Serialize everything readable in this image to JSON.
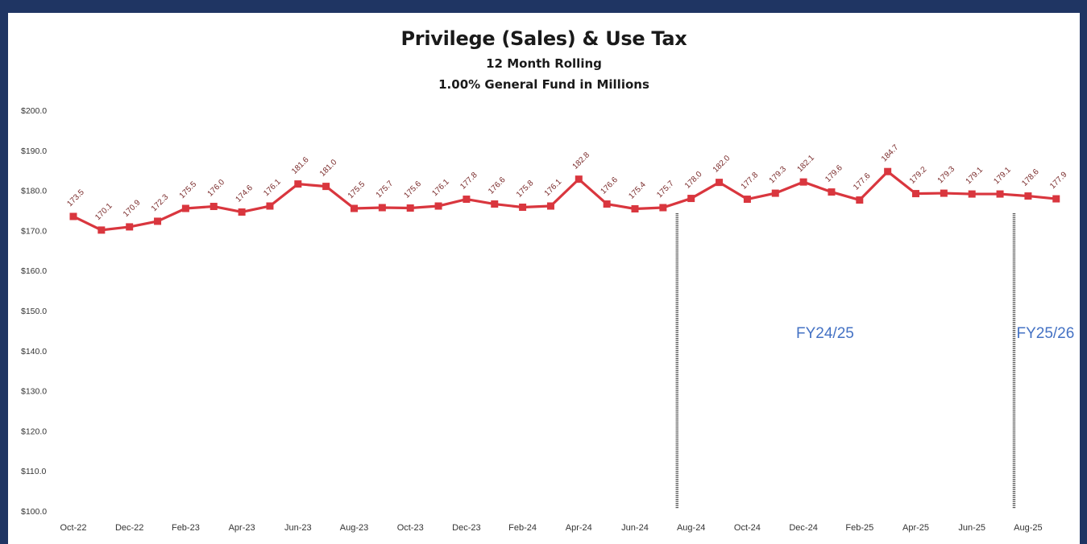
{
  "chart_data": {
    "type": "line",
    "title": "Privilege (Sales) & Use Tax",
    "subtitle": [
      "12 Month Rolling",
      "1.00% General Fund in Millions"
    ],
    "ylim": [
      100,
      200
    ],
    "y_ticks": [
      "$200.0",
      "$190.0",
      "$180.0",
      "$170.0",
      "$160.0",
      "$150.0",
      "$140.0",
      "$130.0",
      "$120.0",
      "$110.0",
      "$100.0"
    ],
    "y_tick_values": [
      200,
      190,
      180,
      170,
      160,
      150,
      140,
      130,
      120,
      110,
      100
    ],
    "x_tick_labels": [
      "Oct-22",
      "Dec-22",
      "Feb-23",
      "Apr-23",
      "Jun-23",
      "Aug-23",
      "Oct-23",
      "Dec-23",
      "Feb-24",
      "Apr-24",
      "Jun-24",
      "Aug-24",
      "Oct-24",
      "Dec-24",
      "Feb-25",
      "Apr-25",
      "Jun-25",
      "Aug-25"
    ],
    "grid": false,
    "series": [
      {
        "color": "#d9363e",
        "values": [
          173.5,
          170.1,
          170.9,
          172.3,
          175.5,
          176.0,
          174.6,
          176.1,
          181.6,
          181.0,
          175.5,
          175.7,
          175.6,
          176.1,
          177.8,
          176.6,
          175.8,
          176.1,
          182.8,
          176.6,
          175.4,
          175.7,
          178.0,
          182.0,
          177.8,
          179.3,
          182.1,
          179.6,
          177.6,
          184.7,
          179.2,
          179.3,
          179.1,
          179.1,
          178.6,
          177.9
        ],
        "data_labels": [
          "173.5",
          "170.1",
          "170.9",
          "172.3",
          "175.5",
          "176.0",
          "174.6",
          "176.1",
          "181.6",
          "181.0",
          "175.5",
          "175.7",
          "175.6",
          "176.1",
          "177.8",
          "176.6",
          "175.8",
          "176.1",
          "182.8",
          "176.6",
          "175.4",
          "175.7",
          "178.0",
          "182.0",
          "177.8",
          "179.3",
          "182.1",
          "179.6",
          "177.6",
          "184.7",
          "179.2",
          "179.3",
          "179.1",
          "179.1",
          "178.6",
          "177.9"
        ]
      }
    ],
    "annotations": [
      {
        "text": "FY24/25",
        "after_index": 21
      },
      {
        "text": "FY25/26",
        "after_index": 33
      }
    ],
    "colors": {
      "line": "#d9363e",
      "marker": "#d9363e",
      "label": "#7a2b2b",
      "annotation": "#4472c4",
      "background": "#1f3563"
    }
  }
}
